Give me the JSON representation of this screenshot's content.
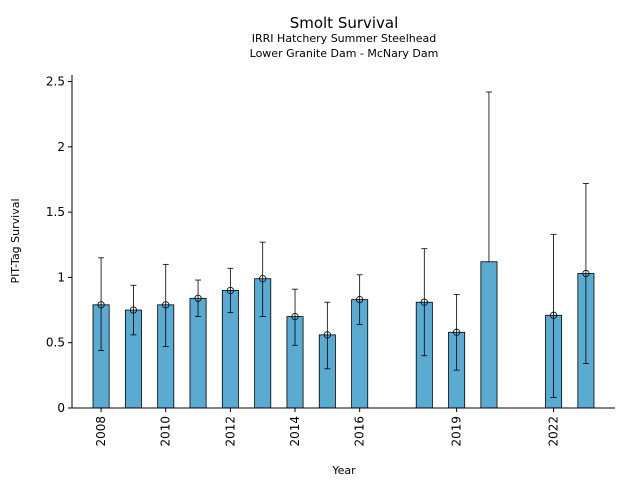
{
  "chart_data": {
    "type": "bar",
    "title": "Smolt Survival",
    "subtitle_lines": [
      "IRRI Hatchery Summer Steelhead",
      "Lower Granite Dam - McNary Dam"
    ],
    "xlabel": "Year",
    "ylabel": "PIT-Tag Survival",
    "ylim": [
      0,
      2.55
    ],
    "yticks": [
      0,
      0.5,
      1,
      1.5,
      2,
      2.5
    ],
    "ytick_labels": [
      "0",
      "0.5",
      "1",
      "1.5",
      "2",
      "2.5"
    ],
    "xticks": [
      2008,
      2010,
      2012,
      2014,
      2016,
      2019,
      2022
    ],
    "xtick_labels": [
      "2008",
      "2010",
      "2012",
      "2014",
      "2016",
      "2019",
      "2022"
    ],
    "xlim": [
      2007.1,
      2023.9
    ],
    "bar_color": "#5aaad2",
    "grid": false,
    "years": [
      2008,
      2009,
      2010,
      2011,
      2012,
      2013,
      2014,
      2015,
      2016,
      2018,
      2019,
      2020,
      2022,
      2023
    ],
    "values": [
      0.79,
      0.75,
      0.79,
      0.84,
      0.9,
      0.99,
      0.7,
      0.56,
      0.83,
      0.81,
      0.58,
      1.12,
      0.71,
      1.03
    ],
    "error_low": [
      0.44,
      0.56,
      0.47,
      0.7,
      0.73,
      0.7,
      0.48,
      0.3,
      0.64,
      0.4,
      0.29,
      null,
      0.08,
      0.34
    ],
    "error_high": [
      1.15,
      0.94,
      1.1,
      0.98,
      1.07,
      1.27,
      0.91,
      0.81,
      1.02,
      1.22,
      0.87,
      2.42,
      1.33,
      1.72
    ],
    "markers": [
      true,
      true,
      true,
      true,
      true,
      true,
      true,
      true,
      true,
      true,
      true,
      false,
      true,
      true
    ]
  }
}
